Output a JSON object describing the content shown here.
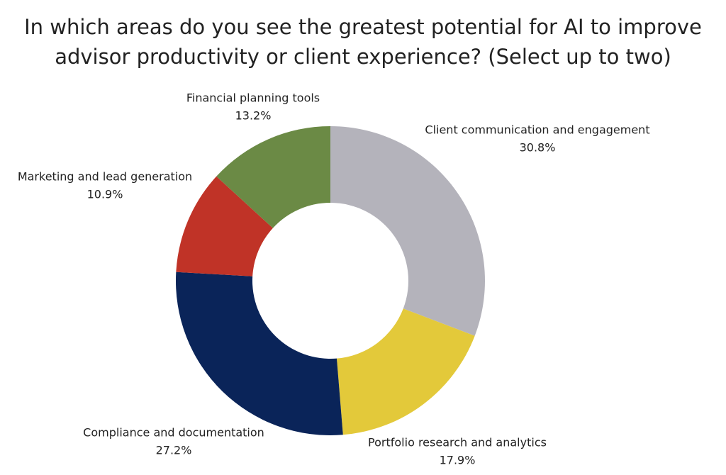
{
  "chart_data": {
    "type": "donut",
    "title": [
      "In which areas do you see the greatest potential for AI to improve",
      "advisor productivity or client experience? (Select up to two)"
    ],
    "categories": [
      "Client communication and engagement",
      "Portfolio research and analytics",
      "Compliance and documentation",
      "Marketing and lead generation",
      "Financial planning tools"
    ],
    "values": [
      30.8,
      17.9,
      27.2,
      10.9,
      13.2
    ],
    "value_labels": [
      "30.8%",
      "17.9%",
      "27.2%",
      "10.9%",
      "13.2%"
    ],
    "colors": [
      "#b4b3bb",
      "#e3c93a",
      "#0a2459",
      "#c03327",
      "#6b8a45"
    ]
  }
}
